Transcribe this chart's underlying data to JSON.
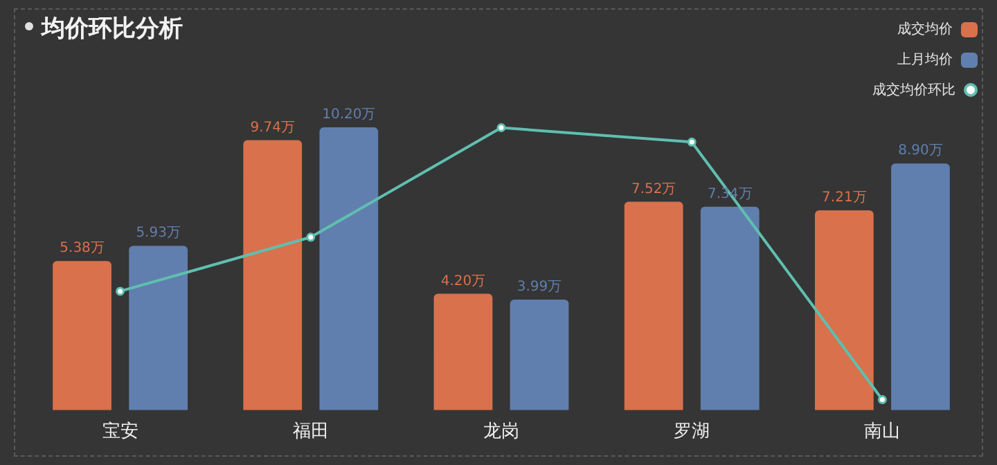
{
  "chart_data": {
    "type": "bar",
    "title": "均价环比分析",
    "categories": [
      "宝安",
      "福田",
      "龙岗",
      "罗湖",
      "南山"
    ],
    "series": [
      {
        "name": "成交均价",
        "color": "#d9714c",
        "values": [
          5.38,
          9.74,
          4.2,
          7.52,
          7.21
        ],
        "value_labels": [
          "5.38万",
          "9.74万",
          "4.20万",
          "7.52万",
          "7.21万"
        ]
      },
      {
        "name": "上月均价",
        "color": "#607fae",
        "values": [
          5.93,
          10.2,
          3.99,
          7.34,
          8.9
        ],
        "value_labels": [
          "5.93万",
          "10.20万",
          "3.99万",
          "7.34万",
          "8.90万"
        ]
      },
      {
        "name": "成交均价环比",
        "type": "line",
        "color": "#5fbfb0",
        "marker": "circle",
        "values": [
          4.29,
          6.24,
          10.19,
          9.67,
          0.38
        ]
      }
    ],
    "tick_labels": "x",
    "grid": false,
    "legend": "top right"
  }
}
